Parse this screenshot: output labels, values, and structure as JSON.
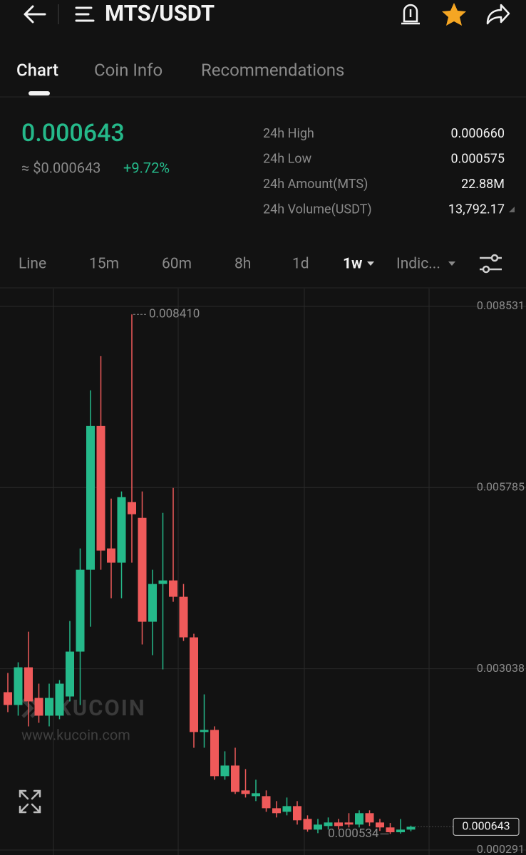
{
  "header": {
    "title": "MTS/USDT"
  },
  "tabs": [
    "Chart",
    "Coin Info",
    "Recommendations"
  ],
  "ticker": {
    "price": "0.000643",
    "usd_price": "≈ $0.000643",
    "change": "+9.72%"
  },
  "stats": [
    {
      "label": "24h High",
      "value": "0.000660"
    },
    {
      "label": "24h Low",
      "value": "0.000575"
    },
    {
      "label": "24h Amount(MTS)",
      "value": "22.88M"
    },
    {
      "label": "24h Volume(USDT)",
      "value": "13,792.17"
    }
  ],
  "intervals": [
    "Line",
    "15m",
    "60m",
    "8h",
    "1d",
    "1w",
    "Indic..."
  ],
  "watermark": {
    "brand": "KUCOIN",
    "url": "www.kucoin.com"
  },
  "chart_data": {
    "type": "candlestick",
    "up_color": "#25b98a",
    "down_color": "#ef5a5a",
    "open": [
      0.002683,
      0.002489,
      0.00306,
      0.002596,
      0.002327,
      0.002327,
      0.002618,
      0.003298,
      0.004539,
      0.006718,
      0.004862,
      0.004647,
      0.005564,
      0.005326,
      0.003751,
      0.004323,
      0.004377,
      0.004129,
      0.003514,
      0.002079,
      0.002111,
      0.00141,
      0.001571,
      0.001194,
      0.001107,
      0.001107,
      0.000924,
      0.00087,
      0.000956,
      0.000762,
      0.0006,
      0.000654,
      0.000708,
      0.000708,
      0.000676,
      0.000849,
      0.000708,
      0.000633,
      0.00056,
      0.0006
    ],
    "high": [
      0.002974,
      0.003136,
      0.0036,
      0.002812,
      0.002812,
      0.002866,
      0.003762,
      0.004862,
      0.007258,
      0.007776,
      0.005618,
      0.005726,
      0.00841,
      0.005726,
      0.004539,
      0.005402,
      0.00578,
      0.004323,
      0.003568,
      0.00265,
      0.002165,
      0.001787,
      0.001841,
      0.001517,
      0.001356,
      0.001194,
      0.001032,
      0.001086,
      0.001032,
      0.000816,
      0.000762,
      0.000784,
      0.000762,
      0.000849,
      0.000892,
      0.000892,
      0.000762,
      0.0007,
      0.00076,
      0.00066
    ],
    "low": [
      0.002381,
      0.002327,
      0.002165,
      0.002219,
      0.002165,
      0.002273,
      0.002543,
      0.002489,
      0.003675,
      0.004539,
      0.004107,
      0.004107,
      0.004647,
      0.003406,
      0.003244,
      0.003028,
      0.004053,
      0.00346,
      0.001841,
      0.001841,
      0.001356,
      0.001356,
      0.00114,
      0.001086,
      0.001032,
      0.00087,
      0.000784,
      0.000816,
      0.000676,
      0.000568,
      0.000546,
      0.0006,
      0.0006,
      0.000633,
      0.000633,
      0.000654,
      0.00058,
      0.000534,
      0.00054,
      0.000575
    ],
    "close": [
      0.002489,
      0.00306,
      0.002543,
      0.002327,
      0.002596,
      0.002812,
      0.003298,
      0.004539,
      0.006718,
      0.00483,
      0.004647,
      0.005639,
      0.00538,
      0.003751,
      0.004323,
      0.004377,
      0.004129,
      0.003514,
      0.002079,
      0.002111,
      0.00141,
      0.001571,
      0.001172,
      0.00114,
      0.001151,
      0.000924,
      0.000849,
      0.000956,
      0.000741,
      0.0006,
      0.000676,
      0.000708,
      0.000654,
      0.000676,
      0.000849,
      0.000708,
      0.000633,
      0.00056,
      0.0006,
      0.000643
    ],
    "ylim": [
      0.000215,
      0.008801
    ],
    "yticks": [
      0.008531,
      0.005785,
      0.003038,
      0.000291
    ],
    "grid": true,
    "max_marker": {
      "value": 0.00841,
      "label": "0.008410"
    },
    "min_marker": 0.000534,
    "last_price": 0.000643
  }
}
